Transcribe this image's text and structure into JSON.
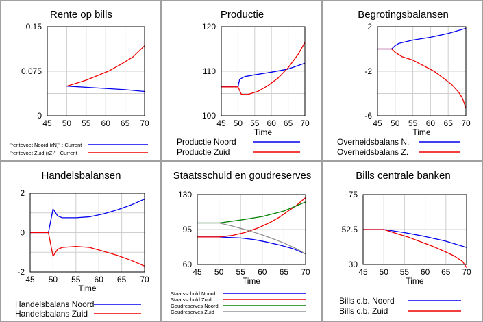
{
  "colors": {
    "blue": "#0000ee",
    "red": "#ee0000",
    "green": "#008000",
    "gray": "#909090"
  },
  "chart_data": [
    {
      "type": "line",
      "title": "Rente op bills",
      "xlabel": "",
      "xlim": [
        45,
        70
      ],
      "ylim": [
        0,
        0.15
      ],
      "xticks": [
        "45",
        "50",
        "55",
        "60",
        "65",
        "70"
      ],
      "yticks": [
        "0",
        "0.075",
        "0.15"
      ],
      "ytick_values": [
        0,
        0.075,
        0.15
      ],
      "legend_style": "small",
      "series": [
        {
          "name": "\"rentevoet Noord (rN)\" : Current",
          "color": "#0000ee",
          "x": [
            50,
            55,
            60,
            65,
            70
          ],
          "y": [
            0.05,
            0.048,
            0.046,
            0.044,
            0.041
          ]
        },
        {
          "name": "\"rentevoet Zuid (rZ)\" : Current",
          "color": "#ee0000",
          "x": [
            50,
            52,
            55,
            58,
            61,
            64,
            67,
            70
          ],
          "y": [
            0.05,
            0.054,
            0.06,
            0.068,
            0.076,
            0.087,
            0.099,
            0.118
          ]
        }
      ]
    },
    {
      "type": "line",
      "title": "Productie",
      "xlabel": "Time",
      "xlim": [
        45,
        70
      ],
      "ylim": [
        100,
        120
      ],
      "xticks": [
        "45",
        "50",
        "55",
        "60",
        "65",
        "70"
      ],
      "yticks": [
        "100",
        "110",
        "120"
      ],
      "ytick_values": [
        100,
        110,
        120
      ],
      "legend_style": "normal",
      "series": [
        {
          "name": "Productie Noord",
          "color": "#0000ee",
          "x": [
            45,
            50,
            50.5,
            52,
            55,
            60,
            65,
            70
          ],
          "y": [
            106.5,
            106.5,
            108.2,
            108.8,
            109.2,
            109.8,
            110.5,
            111.8
          ]
        },
        {
          "name": "Productie Zuid",
          "color": "#ee0000",
          "x": [
            45,
            50,
            51,
            53,
            56,
            59,
            62,
            65,
            68,
            70
          ],
          "y": [
            106.5,
            106.5,
            104.8,
            104.8,
            105.5,
            106.8,
            108.5,
            110.8,
            113.8,
            116.5
          ]
        }
      ]
    },
    {
      "type": "line",
      "title": "Begrotingsbalansen",
      "xlabel": "Time",
      "xlim": [
        45,
        70
      ],
      "ylim": [
        -6,
        2
      ],
      "xticks": [
        "45",
        "50",
        "55",
        "60",
        "65",
        "70"
      ],
      "yticks": [
        "-6",
        "-2",
        "2"
      ],
      "ytick_values": [
        -6,
        -2,
        2
      ],
      "legend_style": "normal",
      "series": [
        {
          "name": "Overheidsbalans N.",
          "color": "#0000ee",
          "x": [
            45,
            49,
            50,
            51,
            55,
            60,
            65,
            70
          ],
          "y": [
            0,
            0,
            0.3,
            0.5,
            0.8,
            1.05,
            1.4,
            1.85
          ]
        },
        {
          "name": "Overheidsbalans Z.",
          "color": "#ee0000",
          "x": [
            45,
            49,
            50,
            52,
            55,
            58,
            61,
            64,
            66,
            68,
            69,
            70
          ],
          "y": [
            0,
            0,
            -0.3,
            -0.7,
            -1.0,
            -1.5,
            -2.0,
            -2.7,
            -3.2,
            -3.9,
            -4.4,
            -5.3
          ]
        }
      ]
    },
    {
      "type": "line",
      "title": "Handelsbalansen",
      "xlabel": "Time",
      "xlim": [
        45,
        70
      ],
      "ylim": [
        -2,
        2
      ],
      "xticks": [
        "45",
        "50",
        "55",
        "60",
        "65",
        "70"
      ],
      "yticks": [
        "-2",
        "0",
        "2"
      ],
      "ytick_values": [
        -2,
        0,
        2
      ],
      "legend_style": "normal",
      "series": [
        {
          "name": "Handelsbalans Noord",
          "color": "#0000ee",
          "x": [
            45,
            49,
            50,
            51,
            52,
            55,
            58,
            61,
            64,
            67,
            70
          ],
          "y": [
            0,
            0,
            1.2,
            0.85,
            0.75,
            0.75,
            0.8,
            0.95,
            1.15,
            1.4,
            1.7
          ]
        },
        {
          "name": "Handelsbalans Zuid",
          "color": "#ee0000",
          "x": [
            45,
            49,
            50,
            51,
            52,
            55,
            58,
            61,
            64,
            67,
            70
          ],
          "y": [
            0,
            0,
            -1.2,
            -0.85,
            -0.75,
            -0.7,
            -0.75,
            -0.95,
            -1.15,
            -1.4,
            -1.7
          ]
        }
      ]
    },
    {
      "type": "line",
      "title": "Staatsschuld en goudreserves",
      "xlabel": "Time",
      "xlim": [
        45,
        70
      ],
      "ylim": [
        60,
        130
      ],
      "xticks": [
        "45",
        "50",
        "55",
        "60",
        "65",
        "70"
      ],
      "yticks": [
        "60",
        "95",
        "130"
      ],
      "ytick_values": [
        60,
        95,
        130
      ],
      "legend_style": "small",
      "series": [
        {
          "name": "Staatsschuld Noord",
          "color": "#0000ee",
          "x": [
            45,
            50,
            55,
            58,
            61,
            64,
            67,
            70
          ],
          "y": [
            87.5,
            87.5,
            86.5,
            85,
            82.5,
            79.5,
            76,
            70.5
          ]
        },
        {
          "name": "Staatsschuld Zuid",
          "color": "#ee0000",
          "x": [
            45,
            50,
            53,
            56,
            59,
            62,
            64,
            66,
            68,
            70
          ],
          "y": [
            87.5,
            87.5,
            89,
            92,
            96.5,
            102.5,
            107.5,
            113.5,
            119.5,
            127
          ]
        },
        {
          "name": "Goudreserves Noord",
          "color": "#008000",
          "x": [
            45,
            50,
            55,
            60,
            65,
            70
          ],
          "y": [
            101.5,
            101.5,
            104.5,
            108,
            113.5,
            122.5
          ]
        },
        {
          "name": "Goudreserves Zuid",
          "color": "#909090",
          "x": [
            45,
            50,
            53,
            56,
            59,
            62,
            65,
            68,
            70
          ],
          "y": [
            101.5,
            101.5,
            98.5,
            95,
            91,
            86.5,
            81.5,
            75.5,
            70.5
          ]
        }
      ]
    },
    {
      "type": "line",
      "title": "Bills centrale banken",
      "xlabel": "Time",
      "xlim": [
        45,
        70
      ],
      "ylim": [
        30,
        75
      ],
      "xticks": [
        "45",
        "50",
        "55",
        "60",
        "65",
        "70"
      ],
      "yticks": [
        "30",
        "52.5",
        "75"
      ],
      "ytick_values": [
        30,
        52.5,
        75
      ],
      "legend_style": "normal",
      "series": [
        {
          "name": "Bills c.b. Noord",
          "color": "#0000ee",
          "x": [
            45,
            50,
            55,
            60,
            65,
            70
          ],
          "y": [
            52.5,
            52.5,
            50.5,
            48.0,
            45.0,
            41.0
          ]
        },
        {
          "name": "Bills c.b. Zuid",
          "color": "#ee0000",
          "x": [
            45,
            50,
            53,
            56,
            59,
            62,
            65,
            67,
            69,
            70
          ],
          "y": [
            52.5,
            52.5,
            50,
            47.5,
            44.5,
            41.5,
            38,
            35.5,
            32,
            28
          ]
        }
      ]
    }
  ]
}
